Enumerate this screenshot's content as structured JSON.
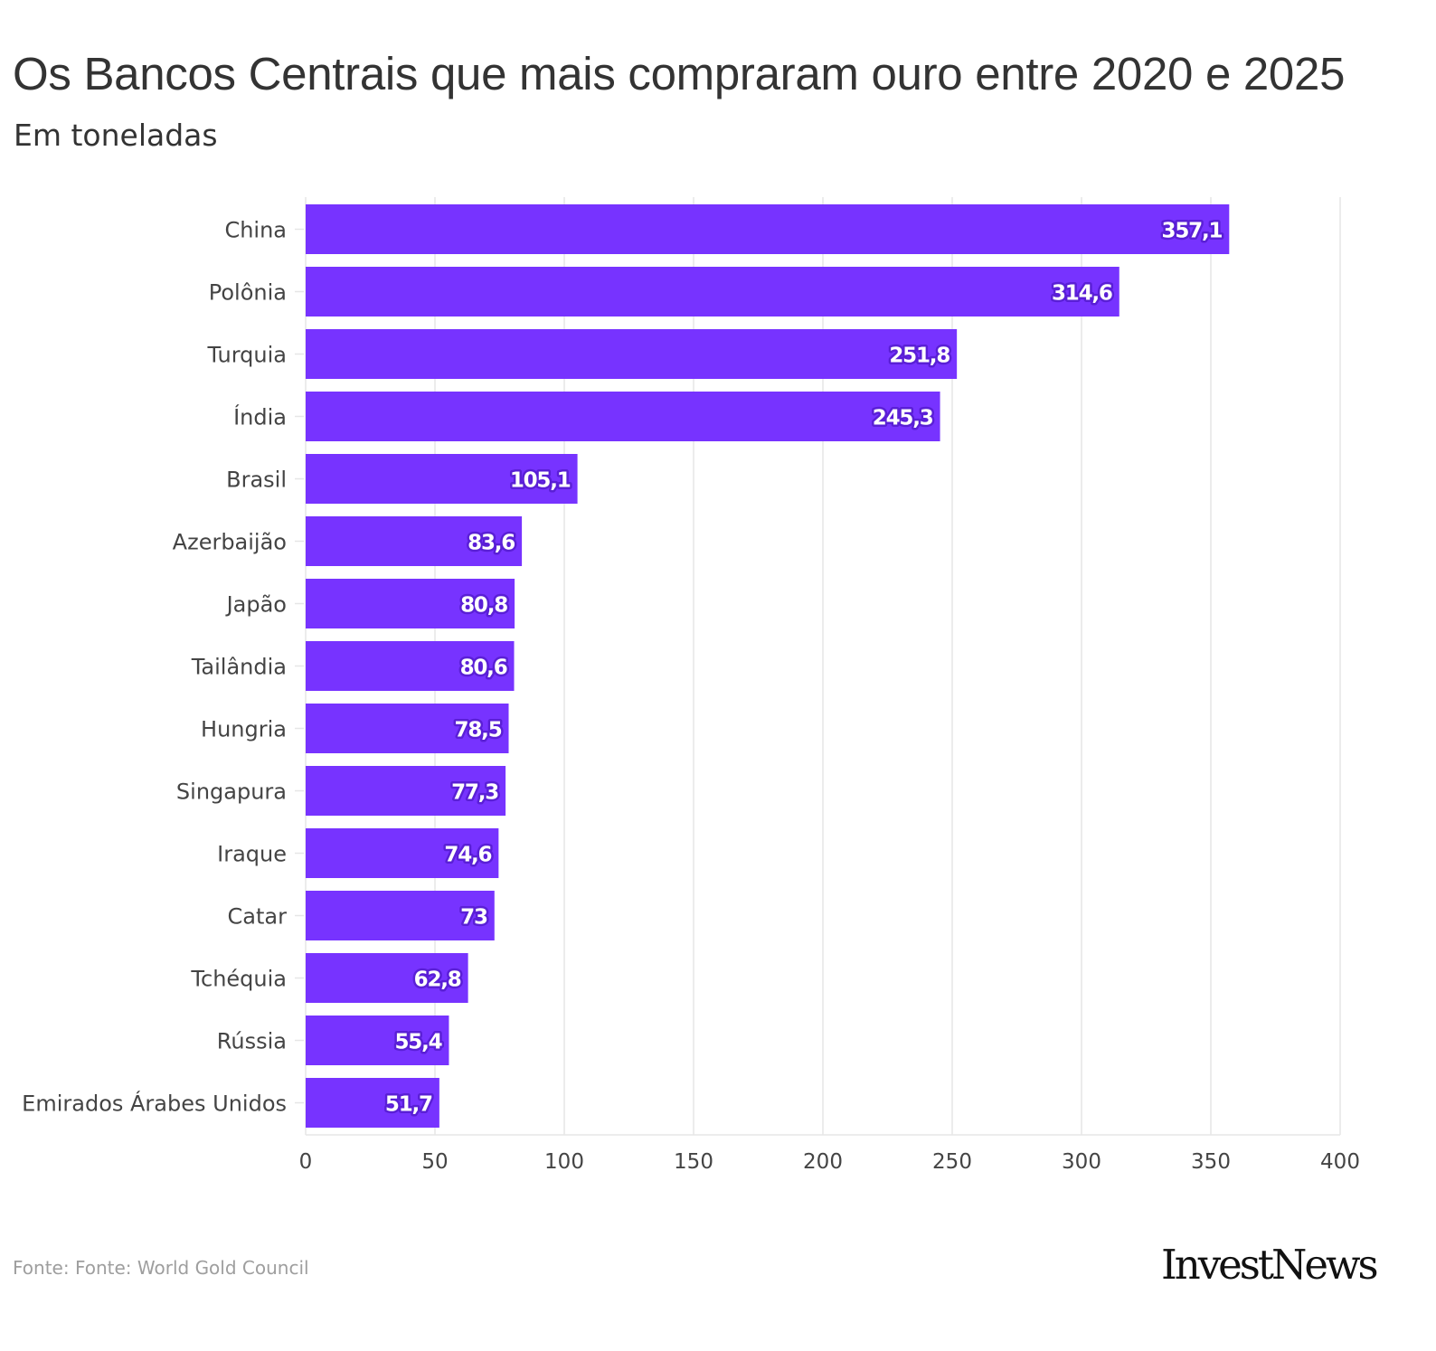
{
  "chart_data": {
    "type": "bar",
    "orientation": "horizontal",
    "title": "Os Bancos Centrais que mais compraram ouro entre 2020 e 2025",
    "subtitle": "Em toneladas",
    "categories": [
      "China",
      "Polônia",
      "Turquia",
      "Índia",
      "Brasil",
      "Azerbaijão",
      "Japão",
      "Tailândia",
      "Hungria",
      "Singapura",
      "Iraque",
      "Catar",
      "Tchéquia",
      "Rússia",
      "Emirados Árabes Unidos"
    ],
    "values": [
      357.1,
      314.6,
      251.8,
      245.3,
      105.1,
      83.6,
      80.8,
      80.6,
      78.5,
      77.3,
      74.6,
      73,
      62.8,
      55.4,
      51.7
    ],
    "value_labels": [
      "357,1",
      "314,6",
      "251,8",
      "245,3",
      "105,1",
      "83,6",
      "80,8",
      "80,6",
      "78,5",
      "77,3",
      "74,6",
      "73",
      "62,8",
      "55,4",
      "51,7"
    ],
    "xlim": [
      0,
      400
    ],
    "xticks": [
      0,
      50,
      100,
      150,
      200,
      250,
      300,
      350,
      400
    ],
    "xlabel": "",
    "ylabel": "",
    "grid": true,
    "bar_color": "#7733ff",
    "label_outline_color": "#5a1fd6",
    "grid_color": "#e6e6e6"
  },
  "source": "Fonte: Fonte: World Gold Council",
  "logo": "InvestNews"
}
